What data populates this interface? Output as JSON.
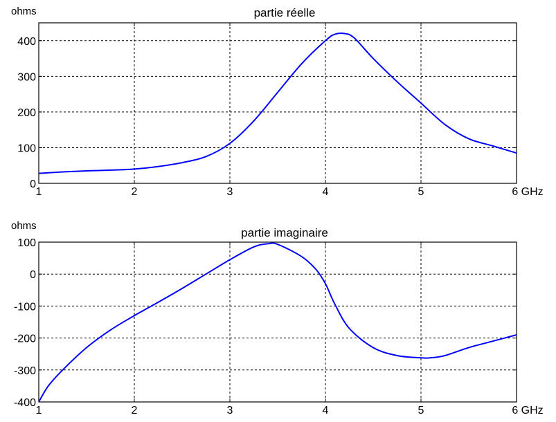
{
  "chart_data": [
    {
      "type": "line",
      "title": "partie réelle",
      "ylabel": "ohms",
      "x_unit": "GHz",
      "xlim": [
        1,
        6
      ],
      "ylim": [
        0,
        450
      ],
      "xticks": [
        1,
        2,
        3,
        4,
        5,
        6
      ],
      "yticks": [
        0,
        100,
        200,
        300,
        400
      ],
      "grid": true,
      "series": [
        {
          "color": "#0000ff",
          "x": [
            1.0,
            1.25,
            1.5,
            1.75,
            2.0,
            2.25,
            2.5,
            2.75,
            3.0,
            3.25,
            3.5,
            3.75,
            4.0,
            4.1,
            4.2,
            4.3,
            4.5,
            4.75,
            5.0,
            5.25,
            5.5,
            5.75,
            6.0
          ],
          "y": [
            28,
            32,
            35,
            37,
            40,
            47,
            58,
            75,
            112,
            175,
            255,
            335,
            400,
            418,
            420,
            408,
            350,
            285,
            225,
            165,
            125,
            105,
            85
          ]
        }
      ]
    },
    {
      "type": "line",
      "title": "partie imaginaire",
      "ylabel": "ohms",
      "x_unit": "GHz",
      "xlim": [
        1,
        6
      ],
      "ylim": [
        -400,
        100
      ],
      "xticks": [
        1,
        2,
        3,
        4,
        5,
        6
      ],
      "yticks": [
        -400,
        -300,
        -200,
        -100,
        0,
        100
      ],
      "grid": true,
      "series": [
        {
          "color": "#0000ff",
          "x": [
            1.0,
            1.1,
            1.25,
            1.5,
            1.75,
            2.0,
            2.25,
            2.5,
            2.75,
            3.0,
            3.25,
            3.4,
            3.5,
            3.75,
            3.9,
            4.0,
            4.1,
            4.25,
            4.5,
            4.75,
            5.0,
            5.1,
            5.25,
            5.5,
            5.75,
            6.0
          ],
          "y": [
            -400,
            -350,
            -300,
            -230,
            -175,
            -130,
            -88,
            -45,
            0,
            45,
            85,
            95,
            93,
            55,
            15,
            -30,
            -95,
            -170,
            -230,
            -255,
            -262,
            -262,
            -255,
            -230,
            -210,
            -190
          ]
        }
      ]
    }
  ]
}
